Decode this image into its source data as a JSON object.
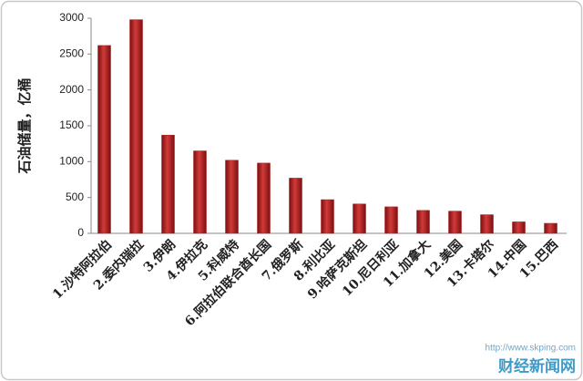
{
  "chart_data": {
    "type": "bar",
    "ylabel": "石油储量，亿桶",
    "categories": [
      "1.沙特阿拉伯",
      "2.委内瑞拉",
      "3.伊朗",
      "4.伊拉克",
      "5.科威特",
      "6.阿拉伯联合酋长国",
      "7.俄罗斯",
      "8.利比亚",
      "9.哈萨克斯坦",
      "10.尼日利亚",
      "11.加拿大",
      "12.美国",
      "13.卡塔尔",
      "14.中国",
      "15.巴西"
    ],
    "values": [
      2620,
      2980,
      1370,
      1150,
      1020,
      980,
      770,
      470,
      410,
      370,
      320,
      310,
      260,
      160,
      140
    ],
    "color": "#b01e1e",
    "ylim": [
      0,
      3000
    ],
    "yticks": [
      0,
      500,
      1000,
      1500,
      2000,
      2500,
      3000
    ],
    "grid": false
  },
  "watermark": {
    "url": "http://www.skping.com",
    "name": "财经新闻网"
  }
}
